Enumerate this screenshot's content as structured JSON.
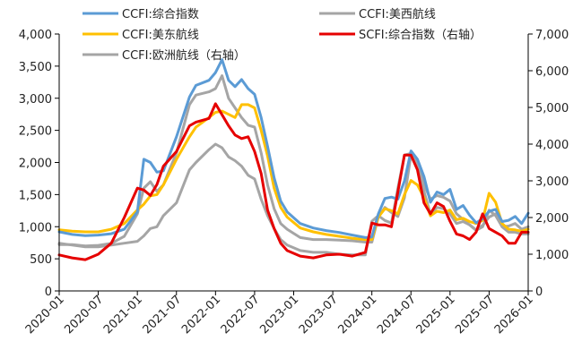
{
  "chart_data": {
    "type": "line",
    "title": "",
    "xlabel": "",
    "ylabel": "",
    "y2label": "",
    "x_ticks": [
      "2020-01",
      "2020-07",
      "2021-01",
      "2021-07",
      "2022-01",
      "2022-07",
      "2023-01",
      "2023-07",
      "2024-01",
      "2024-07",
      "2025-01",
      "2025-07",
      "2026-01"
    ],
    "ylim": [
      0,
      4000
    ],
    "y2lim": [
      0,
      7000
    ],
    "y_ticks": [
      0,
      500,
      1000,
      1500,
      2000,
      2500,
      3000,
      3500,
      4000
    ],
    "y_tick_labels": [
      "0",
      "500",
      "1,000",
      "1,500",
      "2,000",
      "2,500",
      "3,000",
      "3,500",
      "4,000"
    ],
    "y2_ticks": [
      0,
      1000,
      2000,
      3000,
      4000,
      5000,
      6000,
      7000
    ],
    "y2_tick_labels": [
      "0",
      "1,000",
      "2,000",
      "3,000",
      "4,000",
      "5,000",
      "6,000",
      "7,000"
    ],
    "grid": false,
    "legend_position": "top",
    "series": [
      {
        "name": "CCFI:综合指数",
        "axis": "left",
        "color": "#5b9bd5",
        "x": [
          "2020-01",
          "2020-03",
          "2020-05",
          "2020-07",
          "2020-09",
          "2020-11",
          "2021-01",
          "2021-02",
          "2021-03",
          "2021-04",
          "2021-05",
          "2021-07",
          "2021-09",
          "2021-10",
          "2021-12",
          "2022-01",
          "2022-02",
          "2022-03",
          "2022-04",
          "2022-05",
          "2022-06",
          "2022-07",
          "2022-08",
          "2022-09",
          "2022-10",
          "2022-11",
          "2022-12",
          "2023-02",
          "2023-04",
          "2023-06",
          "2023-08",
          "2023-10",
          "2023-12",
          "2024-01",
          "2024-02",
          "2024-03",
          "2024-04",
          "2024-05",
          "2024-06",
          "2024-07",
          "2024-08",
          "2024-09",
          "2024-10",
          "2024-11",
          "2024-12",
          "2025-01",
          "2025-02",
          "2025-03",
          "2025-04",
          "2025-05",
          "2025-06",
          "2025-07",
          "2025-08",
          "2025-09",
          "2025-10",
          "2025-11",
          "2025-12",
          "2026-01"
        ],
        "y": [
          920,
          880,
          860,
          870,
          890,
          960,
          1230,
          2050,
          2000,
          1850,
          1870,
          2400,
          3020,
          3200,
          3280,
          3400,
          3600,
          3280,
          3180,
          3290,
          3150,
          3060,
          2700,
          2250,
          1760,
          1400,
          1230,
          1050,
          980,
          940,
          910,
          870,
          830,
          840,
          1200,
          1440,
          1460,
          1430,
          1710,
          2180,
          2050,
          1780,
          1380,
          1540,
          1500,
          1580,
          1270,
          1330,
          1180,
          1060,
          1120,
          1240,
          1270,
          1080,
          1100,
          1160,
          1050,
          1210
        ]
      },
      {
        "name": "CCFI:美西航线",
        "axis": "left",
        "color": "#a5a5a5",
        "x": [
          "2020-01",
          "2020-03",
          "2020-05",
          "2020-07",
          "2020-09",
          "2020-11",
          "2021-01",
          "2021-02",
          "2021-03",
          "2021-04",
          "2021-05",
          "2021-07",
          "2021-09",
          "2021-10",
          "2021-12",
          "2022-01",
          "2022-02",
          "2022-03",
          "2022-04",
          "2022-05",
          "2022-06",
          "2022-07",
          "2022-08",
          "2022-09",
          "2022-10",
          "2022-11",
          "2022-12",
          "2023-02",
          "2023-04",
          "2023-06",
          "2023-08",
          "2023-10",
          "2023-12",
          "2024-01",
          "2024-02",
          "2024-03",
          "2024-04",
          "2024-05",
          "2024-06",
          "2024-07",
          "2024-08",
          "2024-09",
          "2024-10",
          "2024-11",
          "2024-12",
          "2025-01",
          "2025-02",
          "2025-03",
          "2025-04",
          "2025-05",
          "2025-06",
          "2025-07",
          "2025-08",
          "2025-09",
          "2025-10",
          "2025-11",
          "2025-12",
          "2026-01"
        ],
        "y": [
          720,
          720,
          700,
          710,
          740,
          850,
          1200,
          1600,
          1700,
          1550,
          1650,
          2150,
          2900,
          3050,
          3100,
          3150,
          3350,
          3000,
          2850,
          2700,
          2580,
          2550,
          2150,
          1650,
          1280,
          1050,
          960,
          830,
          800,
          800,
          790,
          780,
          760,
          760,
          1150,
          1300,
          1220,
          1160,
          1450,
          2120,
          1950,
          1550,
          1200,
          1300,
          1280,
          1200,
          1050,
          1080,
          1030,
          950,
          1020,
          1150,
          1200,
          1000,
          1010,
          1050,
          960,
          1000
        ]
      },
      {
        "name": "CCFI:美东航线",
        "axis": "left",
        "color": "#ffc000",
        "x": [
          "2020-01",
          "2020-03",
          "2020-05",
          "2020-07",
          "2020-09",
          "2020-11",
          "2021-01",
          "2021-02",
          "2021-03",
          "2021-04",
          "2021-05",
          "2021-07",
          "2021-09",
          "2021-10",
          "2021-12",
          "2022-01",
          "2022-02",
          "2022-03",
          "2022-04",
          "2022-05",
          "2022-06",
          "2022-07",
          "2022-08",
          "2022-09",
          "2022-10",
          "2022-11",
          "2022-12",
          "2023-02",
          "2023-04",
          "2023-06",
          "2023-08",
          "2023-10",
          "2023-12",
          "2024-01",
          "2024-02",
          "2024-03",
          "2024-04",
          "2024-05",
          "2024-06",
          "2024-07",
          "2024-08",
          "2024-09",
          "2024-10",
          "2024-11",
          "2024-12",
          "2025-01",
          "2025-02",
          "2025-03",
          "2025-04",
          "2025-05",
          "2025-06",
          "2025-07",
          "2025-08",
          "2025-09",
          "2025-10",
          "2025-11",
          "2025-12",
          "2026-01"
        ],
        "y": [
          950,
          930,
          920,
          920,
          960,
          1050,
          1260,
          1350,
          1480,
          1500,
          1650,
          2050,
          2400,
          2550,
          2700,
          2780,
          2800,
          2750,
          2700,
          2900,
          2900,
          2850,
          2500,
          2100,
          1600,
          1300,
          1150,
          980,
          920,
          880,
          850,
          820,
          800,
          800,
          1150,
          1280,
          1250,
          1200,
          1500,
          1720,
          1650,
          1450,
          1170,
          1240,
          1220,
          1260,
          1110,
          1130,
          1080,
          1050,
          1100,
          1520,
          1380,
          1050,
          960,
          950,
          930,
          960
        ]
      },
      {
        "name": "SCFI:综合指数（右轴）",
        "axis": "right",
        "color": "#e60000",
        "x": [
          "2020-01",
          "2020-03",
          "2020-05",
          "2020-07",
          "2020-09",
          "2020-11",
          "2021-01",
          "2021-02",
          "2021-03",
          "2021-04",
          "2021-05",
          "2021-07",
          "2021-09",
          "2021-10",
          "2021-12",
          "2022-01",
          "2022-02",
          "2022-03",
          "2022-04",
          "2022-05",
          "2022-06",
          "2022-07",
          "2022-08",
          "2022-09",
          "2022-10",
          "2022-11",
          "2022-12",
          "2023-02",
          "2023-04",
          "2023-06",
          "2023-08",
          "2023-10",
          "2023-12",
          "2024-01",
          "2024-02",
          "2024-03",
          "2024-04",
          "2024-05",
          "2024-06",
          "2024-07",
          "2024-08",
          "2024-09",
          "2024-10",
          "2024-11",
          "2024-12",
          "2025-01",
          "2025-02",
          "2025-03",
          "2025-04",
          "2025-05",
          "2025-06",
          "2025-07",
          "2025-08",
          "2025-09",
          "2025-10",
          "2025-11",
          "2025-12",
          "2026-01"
        ],
        "y": [
          980,
          900,
          850,
          1000,
          1300,
          2000,
          2800,
          2750,
          2600,
          2900,
          3400,
          3800,
          4500,
          4600,
          4700,
          5100,
          4800,
          4500,
          4250,
          4150,
          4200,
          3800,
          3200,
          2200,
          1700,
          1300,
          1100,
          950,
          900,
          980,
          1000,
          950,
          1050,
          1850,
          1800,
          1800,
          1750,
          2700,
          3700,
          3700,
          3300,
          2400,
          2100,
          2400,
          2300,
          1900,
          1550,
          1500,
          1400,
          1600,
          2100,
          1700,
          1600,
          1500,
          1300,
          1300,
          1600,
          1600
        ]
      },
      {
        "name": "CCFI:欧洲航线（右轴）",
        "axis": "right",
        "color": "#a5a5a5",
        "x": [
          "2020-01",
          "2020-03",
          "2020-05",
          "2020-07",
          "2020-09",
          "2020-11",
          "2021-01",
          "2021-02",
          "2021-03",
          "2021-04",
          "2021-05",
          "2021-07",
          "2021-09",
          "2021-10",
          "2021-12",
          "2022-01",
          "2022-02",
          "2022-03",
          "2022-04",
          "2022-05",
          "2022-06",
          "2022-07",
          "2022-08",
          "2022-09",
          "2022-10",
          "2022-11",
          "2022-12",
          "2023-02",
          "2023-04",
          "2023-06",
          "2023-08",
          "2023-10",
          "2023-12",
          "2024-01",
          "2024-02",
          "2024-03",
          "2024-04",
          "2024-05",
          "2024-06",
          "2024-07",
          "2024-08",
          "2024-09",
          "2024-10",
          "2024-11",
          "2024-12",
          "2025-01",
          "2025-02",
          "2025-03",
          "2025-04",
          "2025-05",
          "2025-06",
          "2025-07",
          "2025-08",
          "2025-09",
          "2025-10",
          "2025-11",
          "2025-12",
          "2026-01"
        ],
        "y": [
          1300,
          1250,
          1200,
          1200,
          1250,
          1300,
          1350,
          1500,
          1700,
          1750,
          2050,
          2400,
          3300,
          3500,
          3850,
          4000,
          3900,
          3650,
          3550,
          3400,
          3150,
          3050,
          2500,
          2050,
          1700,
          1400,
          1250,
          1100,
          1050,
          1050,
          1000,
          980,
          980,
          1900,
          2050,
          1920,
          1850,
          2800,
          3700,
          3750,
          3550,
          2900,
          2500,
          2600,
          2550,
          2450,
          2100,
          1950,
          1800,
          1650,
          1750,
          2200,
          2050,
          1750,
          1600,
          1600,
          1550,
          1550
        ]
      }
    ]
  }
}
